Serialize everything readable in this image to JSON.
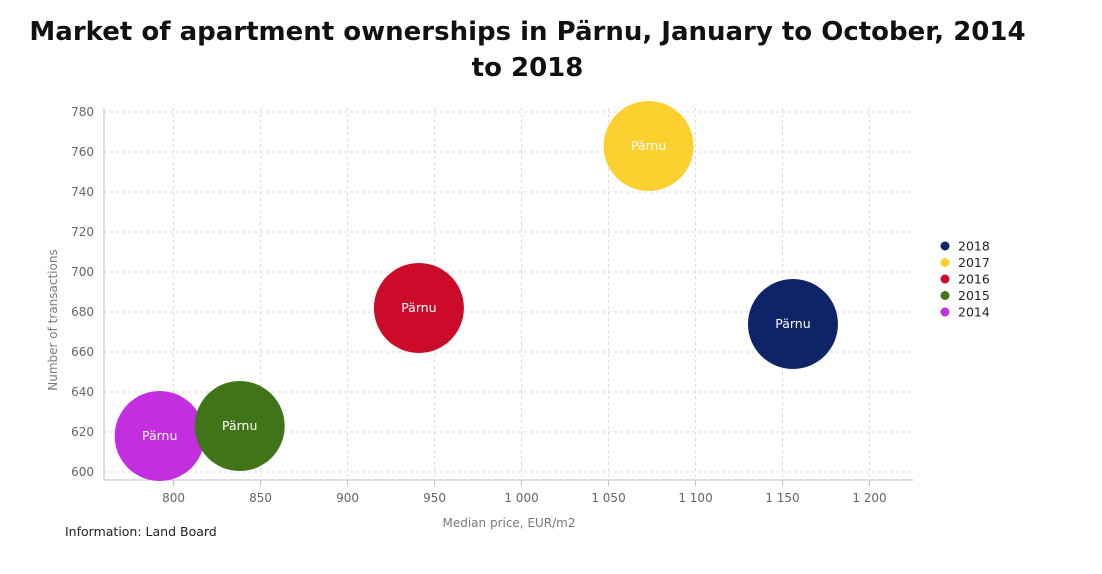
{
  "chart_data": {
    "type": "scatter",
    "title_lines": [
      "Market of apartment ownerships in Pärnu, January to October, 2014",
      "to 2018"
    ],
    "xlabel": "Median price, EUR/m2",
    "ylabel": "Number of transactions",
    "xlim": [
      760,
      1225
    ],
    "ylim": [
      596,
      782
    ],
    "x_ticks": [
      800,
      850,
      900,
      950,
      1000,
      1050,
      1100,
      1150,
      1200
    ],
    "x_tick_labels": [
      "800",
      "850",
      "900",
      "950",
      "1 000",
      "1 050",
      "1 100",
      "1 150",
      "1 200"
    ],
    "y_ticks": [
      600,
      620,
      640,
      660,
      680,
      700,
      720,
      740,
      760,
      780
    ],
    "y_tick_labels": [
      "600",
      "620",
      "640",
      "660",
      "680",
      "700",
      "720",
      "740",
      "760",
      "780"
    ],
    "grid": true,
    "legend_position": "right",
    "series": [
      {
        "name": "2018",
        "color": "#0d2466",
        "points": [
          {
            "x": 1156,
            "y": 674,
            "label": "Pärnu"
          }
        ]
      },
      {
        "name": "2017",
        "color": "#fcd02e",
        "points": [
          {
            "x": 1073,
            "y": 763,
            "label": "Pärnu"
          }
        ]
      },
      {
        "name": "2016",
        "color": "#cc0b2a",
        "points": [
          {
            "x": 941,
            "y": 682,
            "label": "Pärnu"
          }
        ]
      },
      {
        "name": "2015",
        "color": "#3f7418",
        "points": [
          {
            "x": 838,
            "y": 623,
            "label": "Pärnu"
          }
        ]
      },
      {
        "name": "2014",
        "color": "#c22ee0",
        "points": [
          {
            "x": 792,
            "y": 618,
            "label": "Pärnu"
          }
        ]
      }
    ]
  },
  "source_text": "Information: Land Board"
}
